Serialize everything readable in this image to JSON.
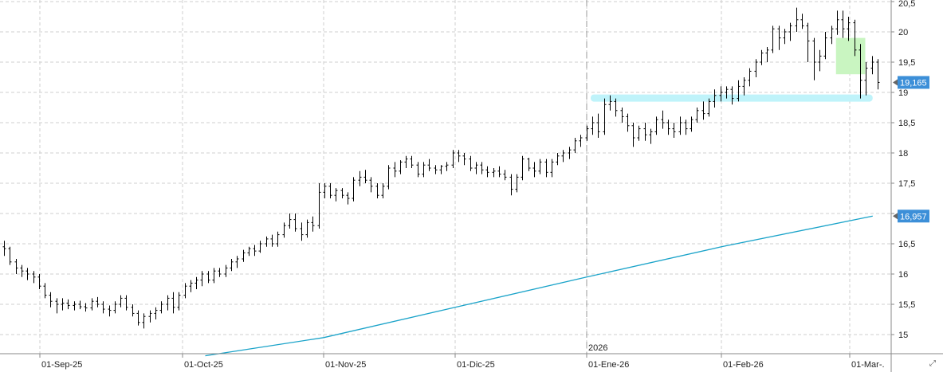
{
  "chart_data": {
    "type": "ohlc",
    "title": "",
    "xlabel": "",
    "ylabel": "",
    "ylim": [
      14.65,
      20.5
    ],
    "grid": true,
    "y_ticks": [
      15,
      15.5,
      16,
      16.5,
      17,
      17.5,
      18,
      18.5,
      19,
      19.5,
      20,
      20.5
    ],
    "y_tick_labels": [
      "15",
      "15,5",
      "16",
      "16,5",
      "17",
      "17,5",
      "18",
      "18,5",
      "19",
      "19,5",
      "20",
      "20,5"
    ],
    "x_ticks": [
      {
        "date": "2025-09-01",
        "label": "01-Sep-25"
      },
      {
        "date": "2025-10-01",
        "label": "01-Oct-25"
      },
      {
        "date": "2025-11-01",
        "label": "01-Nov-25"
      },
      {
        "date": "2025-12-01",
        "label": "01-Dic-25"
      },
      {
        "date": "2026-01-01",
        "label": "01-Ene-26"
      },
      {
        "date": "2026-02-01",
        "label": "01-Feb-26"
      },
      {
        "date": "2026-03-01",
        "label": "01-Mar-."
      }
    ],
    "year_marker": {
      "date": "2026-01-01",
      "label": "2026"
    },
    "series": [
      {
        "kind": "ohlc",
        "color": "#000000",
        "points": [
          [
            16.45,
            16.55,
            16.3,
            16.42
          ],
          [
            16.42,
            16.45,
            16.15,
            16.2
          ],
          [
            16.2,
            16.25,
            16.0,
            16.1
          ],
          [
            16.1,
            16.15,
            15.95,
            16.05
          ],
          [
            16.05,
            16.1,
            15.9,
            16.0
          ],
          [
            16.0,
            16.05,
            15.85,
            15.95
          ],
          [
            15.95,
            16.0,
            15.75,
            15.8
          ],
          [
            15.8,
            15.85,
            15.6,
            15.65
          ],
          [
            15.65,
            15.7,
            15.45,
            15.55
          ],
          [
            15.55,
            15.6,
            15.35,
            15.5
          ],
          [
            15.5,
            15.6,
            15.4,
            15.52
          ],
          [
            15.52,
            15.58,
            15.42,
            15.48
          ],
          [
            15.48,
            15.55,
            15.4,
            15.5
          ],
          [
            15.5,
            15.56,
            15.42,
            15.46
          ],
          [
            15.46,
            15.52,
            15.38,
            15.44
          ],
          [
            15.44,
            15.6,
            15.4,
            15.55
          ],
          [
            15.55,
            15.62,
            15.45,
            15.5
          ],
          [
            15.5,
            15.55,
            15.35,
            15.42
          ],
          [
            15.42,
            15.48,
            15.3,
            15.4
          ],
          [
            15.4,
            15.55,
            15.35,
            15.5
          ],
          [
            15.5,
            15.65,
            15.45,
            15.6
          ],
          [
            15.6,
            15.65,
            15.4,
            15.45
          ],
          [
            15.45,
            15.5,
            15.3,
            15.35
          ],
          [
            15.35,
            15.4,
            15.15,
            15.2
          ],
          [
            15.2,
            15.35,
            15.1,
            15.3
          ],
          [
            15.3,
            15.4,
            15.2,
            15.35
          ],
          [
            15.35,
            15.45,
            15.25,
            15.4
          ],
          [
            15.4,
            15.55,
            15.35,
            15.5
          ],
          [
            15.5,
            15.65,
            15.4,
            15.6
          ],
          [
            15.6,
            15.7,
            15.35,
            15.45
          ],
          [
            15.45,
            15.7,
            15.4,
            15.65
          ],
          [
            15.65,
            15.85,
            15.6,
            15.8
          ],
          [
            15.8,
            15.9,
            15.7,
            15.85
          ],
          [
            15.85,
            15.95,
            15.75,
            15.9
          ],
          [
            15.9,
            16.05,
            15.8,
            16.0
          ],
          [
            16.0,
            16.05,
            15.85,
            15.9
          ],
          [
            15.9,
            16.1,
            15.85,
            16.05
          ],
          [
            16.05,
            16.1,
            15.95,
            16.0
          ],
          [
            16.0,
            16.15,
            15.95,
            16.1
          ],
          [
            16.1,
            16.25,
            16.05,
            16.2
          ],
          [
            16.2,
            16.3,
            16.1,
            16.25
          ],
          [
            16.25,
            16.4,
            16.2,
            16.35
          ],
          [
            16.35,
            16.45,
            16.3,
            16.42
          ],
          [
            16.42,
            16.48,
            16.3,
            16.38
          ],
          [
            16.38,
            16.55,
            16.35,
            16.5
          ],
          [
            16.5,
            16.62,
            16.45,
            16.58
          ],
          [
            16.58,
            16.65,
            16.45,
            16.5
          ],
          [
            16.5,
            16.7,
            16.45,
            16.65
          ],
          [
            16.65,
            16.85,
            16.6,
            16.8
          ],
          [
            16.8,
            17.0,
            16.75,
            16.9
          ],
          [
            16.9,
            17.0,
            16.7,
            16.75
          ],
          [
            16.75,
            16.85,
            16.55,
            16.65
          ],
          [
            16.65,
            16.9,
            16.6,
            16.85
          ],
          [
            16.85,
            16.95,
            16.7,
            16.8
          ],
          [
            16.8,
            17.5,
            16.75,
            17.35
          ],
          [
            17.35,
            17.5,
            17.25,
            17.45
          ],
          [
            17.45,
            17.5,
            17.25,
            17.3
          ],
          [
            17.3,
            17.42,
            17.2,
            17.38
          ],
          [
            17.38,
            17.42,
            17.25,
            17.3
          ],
          [
            17.3,
            17.35,
            17.15,
            17.25
          ],
          [
            17.25,
            17.6,
            17.2,
            17.55
          ],
          [
            17.55,
            17.7,
            17.45,
            17.6
          ],
          [
            17.6,
            17.72,
            17.5,
            17.55
          ],
          [
            17.55,
            17.6,
            17.35,
            17.45
          ],
          [
            17.45,
            17.5,
            17.25,
            17.3
          ],
          [
            17.3,
            17.5,
            17.25,
            17.45
          ],
          [
            17.45,
            17.8,
            17.4,
            17.75
          ],
          [
            17.75,
            17.85,
            17.6,
            17.7
          ],
          [
            17.7,
            17.88,
            17.65,
            17.85
          ],
          [
            17.85,
            17.95,
            17.75,
            17.9
          ],
          [
            17.9,
            17.95,
            17.75,
            17.8
          ],
          [
            17.8,
            17.85,
            17.6,
            17.65
          ],
          [
            17.65,
            17.85,
            17.6,
            17.8
          ],
          [
            17.8,
            17.9,
            17.7,
            17.75
          ],
          [
            17.75,
            17.8,
            17.65,
            17.72
          ],
          [
            17.72,
            17.8,
            17.65,
            17.78
          ],
          [
            17.78,
            17.85,
            17.7,
            17.8
          ],
          [
            17.8,
            18.05,
            17.75,
            18.0
          ],
          [
            18.0,
            18.05,
            17.85,
            17.95
          ],
          [
            17.95,
            18.0,
            17.8,
            17.9
          ],
          [
            17.9,
            17.95,
            17.7,
            17.75
          ],
          [
            17.75,
            17.85,
            17.65,
            17.8
          ],
          [
            17.8,
            17.85,
            17.65,
            17.72
          ],
          [
            17.72,
            17.78,
            17.6,
            17.68
          ],
          [
            17.68,
            17.75,
            17.6,
            17.7
          ],
          [
            17.7,
            17.78,
            17.6,
            17.65
          ],
          [
            17.65,
            17.72,
            17.55,
            17.6
          ],
          [
            17.6,
            17.65,
            17.3,
            17.4
          ],
          [
            17.4,
            17.65,
            17.35,
            17.6
          ],
          [
            17.6,
            17.95,
            17.55,
            17.9
          ],
          [
            17.9,
            17.92,
            17.7,
            17.75
          ],
          [
            17.75,
            17.85,
            17.6,
            17.7
          ],
          [
            17.7,
            17.9,
            17.65,
            17.85
          ],
          [
            17.85,
            17.9,
            17.6,
            17.68
          ],
          [
            17.68,
            17.9,
            17.6,
            17.85
          ],
          [
            17.85,
            18.0,
            17.8,
            17.95
          ],
          [
            17.95,
            18.05,
            17.85,
            18.0
          ],
          [
            18.0,
            18.1,
            17.9,
            18.05
          ],
          [
            18.05,
            18.25,
            18.0,
            18.2
          ],
          [
            18.2,
            18.3,
            18.1,
            18.25
          ],
          [
            18.25,
            18.45,
            18.2,
            18.4
          ],
          [
            18.4,
            18.6,
            18.3,
            18.5
          ],
          [
            18.5,
            18.65,
            18.25,
            18.35
          ],
          [
            18.35,
            18.9,
            18.3,
            18.8
          ],
          [
            18.8,
            18.95,
            18.7,
            18.85
          ],
          [
            18.85,
            18.9,
            18.6,
            18.7
          ],
          [
            18.7,
            18.75,
            18.5,
            18.6
          ],
          [
            18.6,
            18.65,
            18.35,
            18.45
          ],
          [
            18.45,
            18.5,
            18.1,
            18.25
          ],
          [
            18.25,
            18.45,
            18.2,
            18.4
          ],
          [
            18.4,
            18.5,
            18.2,
            18.3
          ],
          [
            18.3,
            18.4,
            18.15,
            18.35
          ],
          [
            18.35,
            18.6,
            18.3,
            18.55
          ],
          [
            18.55,
            18.7,
            18.4,
            18.5
          ],
          [
            18.5,
            18.55,
            18.3,
            18.4
          ],
          [
            18.4,
            18.5,
            18.25,
            18.35
          ],
          [
            18.35,
            18.6,
            18.3,
            18.5
          ],
          [
            18.5,
            18.55,
            18.3,
            18.4
          ],
          [
            18.4,
            18.6,
            18.35,
            18.55
          ],
          [
            18.55,
            18.75,
            18.5,
            18.7
          ],
          [
            18.7,
            18.85,
            18.55,
            18.65
          ],
          [
            18.65,
            18.9,
            18.6,
            18.85
          ],
          [
            18.85,
            19.05,
            18.75,
            18.95
          ],
          [
            18.95,
            19.1,
            18.85,
            19.0
          ],
          [
            19.0,
            19.1,
            18.9,
            19.05
          ],
          [
            19.05,
            19.1,
            18.8,
            18.9
          ],
          [
            18.9,
            19.2,
            18.85,
            19.1
          ],
          [
            19.1,
            19.25,
            18.95,
            19.2
          ],
          [
            19.2,
            19.4,
            19.1,
            19.35
          ],
          [
            19.35,
            19.55,
            19.25,
            19.5
          ],
          [
            19.5,
            19.7,
            19.45,
            19.65
          ],
          [
            19.65,
            19.75,
            19.5,
            19.7
          ],
          [
            19.7,
            20.1,
            19.65,
            20.05
          ],
          [
            20.05,
            20.1,
            19.7,
            19.9
          ],
          [
            19.9,
            20.05,
            19.8,
            20.0
          ],
          [
            20.0,
            20.15,
            19.85,
            20.1
          ],
          [
            20.1,
            20.4,
            20.0,
            20.2
          ],
          [
            20.2,
            20.3,
            20.05,
            20.1
          ],
          [
            20.1,
            20.15,
            19.5,
            19.85
          ],
          [
            19.85,
            19.9,
            19.2,
            19.5
          ],
          [
            19.5,
            19.7,
            19.35,
            19.6
          ],
          [
            19.6,
            20.0,
            19.55,
            19.9
          ],
          [
            19.9,
            20.1,
            19.8,
            20.05
          ],
          [
            20.05,
            20.35,
            19.95,
            20.2
          ],
          [
            20.2,
            20.35,
            19.9,
            20.05
          ],
          [
            20.05,
            20.25,
            19.85,
            20.15
          ],
          [
            20.15,
            20.2,
            19.6,
            19.7
          ],
          [
            19.7,
            19.8,
            18.9,
            19.2
          ],
          [
            19.2,
            19.5,
            18.95,
            19.4
          ],
          [
            19.4,
            19.6,
            19.3,
            19.5
          ],
          [
            19.5,
            19.55,
            19.05,
            19.165
          ]
        ]
      },
      {
        "kind": "line",
        "color": "#1aa3c9",
        "x": [
          "2025-10-06",
          "2025-11-01",
          "2025-12-01",
          "2026-01-01",
          "2026-02-01",
          "2026-03-06"
        ],
        "y": [
          14.65,
          14.95,
          15.45,
          15.95,
          16.45,
          16.957
        ]
      }
    ],
    "annotations": [
      {
        "kind": "band",
        "color": "#bff3fa",
        "y": 18.9,
        "x_from": "2026-01-01",
        "x_to": "2026-03-06"
      },
      {
        "kind": "box",
        "color": "#c9f5c1",
        "y_from": 19.3,
        "y_to": 19.9,
        "x_from": "2026-02-26",
        "x_to": "2026-03-03"
      }
    ],
    "price_tags": [
      {
        "label": "19,165",
        "value": 19.165,
        "color": "#3c8fd8"
      },
      {
        "label": "16,957",
        "value": 16.957,
        "color": "#3c8fd8"
      }
    ]
  },
  "icons": {
    "corner": "resize-icon"
  }
}
